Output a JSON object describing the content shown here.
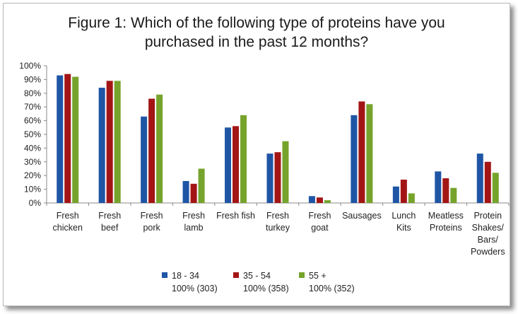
{
  "chart_data": {
    "type": "bar",
    "title": [
      "Figure 1: Which of the following type of proteins have you",
      "purchased in the past 12 months?"
    ],
    "categories": [
      [
        "Fresh",
        "chicken"
      ],
      [
        "Fresh",
        "beef"
      ],
      [
        "Fresh",
        "pork"
      ],
      [
        "Fresh",
        "lamb"
      ],
      [
        "Fresh fish"
      ],
      [
        "Fresh",
        "turkey"
      ],
      [
        "Fresh",
        "goat"
      ],
      [
        "Sausages"
      ],
      [
        "Lunch",
        "Kits"
      ],
      [
        "Meatless",
        "Proteins"
      ],
      [
        "Protein",
        "Shakes/",
        "Bars/",
        "Powders"
      ]
    ],
    "series": [
      {
        "name": "18 - 34",
        "base": "100% (303)",
        "color": "#1f55a5",
        "values": [
          93,
          84,
          63,
          16,
          55,
          36,
          5,
          64,
          12,
          23,
          36
        ]
      },
      {
        "name": "35 - 54",
        "base": "100% (358)",
        "color": "#a31515",
        "values": [
          94,
          89,
          76,
          14,
          56,
          37,
          4,
          74,
          17,
          18,
          30
        ]
      },
      {
        "name": "55 +",
        "base": "100% (352)",
        "color": "#76a32c",
        "values": [
          92,
          89,
          79,
          25,
          64,
          45,
          2,
          72,
          7,
          11,
          22
        ]
      }
    ],
    "ylim": [
      0,
      100
    ],
    "yticks": [
      "0%",
      "10%",
      "20%",
      "30%",
      "40%",
      "50%",
      "60%",
      "70%",
      "80%",
      "90%",
      "100%"
    ],
    "grid": false,
    "legend": "bottom"
  }
}
